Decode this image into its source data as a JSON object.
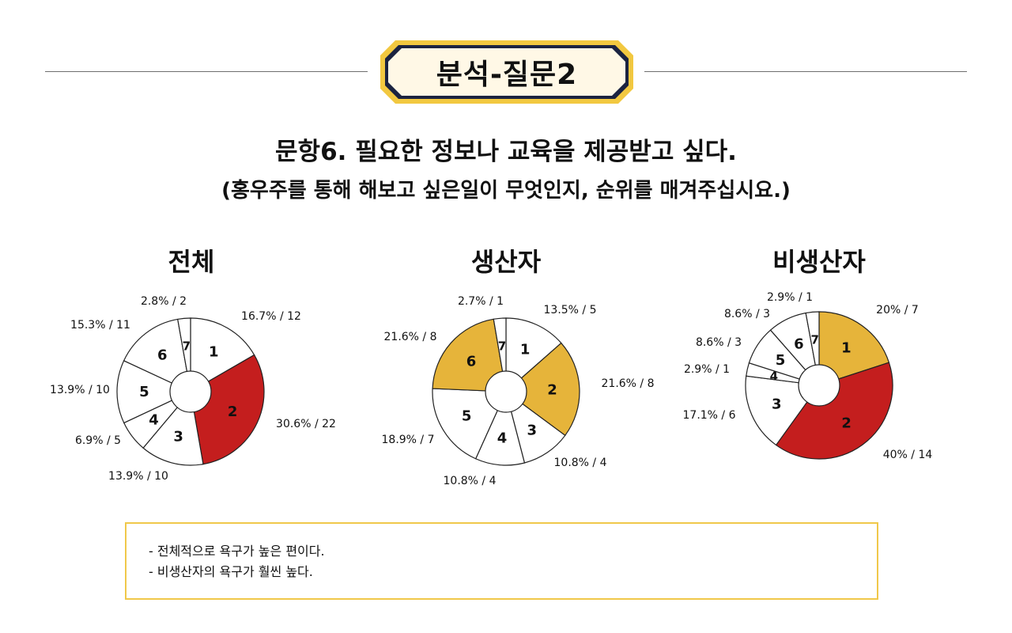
{
  "header": {
    "badge_label": "분석-질문2"
  },
  "question": {
    "title": "문항6. 필요한 정보나 교육을 제공받고 싶다.",
    "subtitle": "(홍우주를 통해 해보고 싶은일이 무엇인지, 순위를 매겨주십시요.)"
  },
  "colors": {
    "red": "#c41e1e",
    "gold": "#e6b43a",
    "white": "#ffffff",
    "stroke": "#222222",
    "badge_fill": "#fff8e6",
    "badge_border": "#f2c840",
    "badge_inner": "#1b2340"
  },
  "chart_data": [
    {
      "type": "pie",
      "title": "전체",
      "categories": [
        "1",
        "2",
        "3",
        "4",
        "5",
        "6",
        "7"
      ],
      "values": [
        16.7,
        30.6,
        13.9,
        6.9,
        13.9,
        15.3,
        2.8
      ],
      "counts": [
        12,
        22,
        10,
        5,
        10,
        11,
        2
      ],
      "labels": [
        "16.7% / 12",
        "30.6% / 22",
        "13.9% / 10",
        "6.9% / 5",
        "13.9% / 10",
        "15.3% / 11",
        "2.8% / 2"
      ],
      "slice_colors": [
        "#ffffff",
        "#c41e1e",
        "#ffffff",
        "#ffffff",
        "#ffffff",
        "#ffffff",
        "#ffffff"
      ]
    },
    {
      "type": "pie",
      "title": "생산자",
      "categories": [
        "1",
        "2",
        "3",
        "4",
        "5",
        "6",
        "7"
      ],
      "values": [
        13.5,
        21.6,
        10.8,
        10.8,
        18.9,
        21.6,
        2.7
      ],
      "counts": [
        5,
        8,
        4,
        4,
        7,
        8,
        1
      ],
      "labels": [
        "13.5% / 5",
        "21.6% / 8",
        "10.8% / 4",
        "10.8% / 4",
        "18.9% / 7",
        "21.6% / 8",
        "2.7% / 1"
      ],
      "slice_colors": [
        "#ffffff",
        "#e6b43a",
        "#ffffff",
        "#ffffff",
        "#ffffff",
        "#e6b43a",
        "#ffffff"
      ]
    },
    {
      "type": "pie",
      "title": "비생산자",
      "categories": [
        "1",
        "2",
        "3",
        "4",
        "5",
        "6",
        "7"
      ],
      "values": [
        20,
        40,
        17.1,
        2.9,
        8.6,
        8.6,
        2.9
      ],
      "counts": [
        7,
        14,
        6,
        1,
        3,
        3,
        1
      ],
      "labels": [
        "20% / 7",
        "40% / 14",
        "17.1% / 6",
        "2.9% / 1",
        "8.6% / 3",
        "8.6% / 3",
        "2.9% / 1"
      ],
      "slice_colors": [
        "#e6b43a",
        "#c41e1e",
        "#ffffff",
        "#ffffff",
        "#ffffff",
        "#ffffff",
        "#ffffff"
      ]
    }
  ],
  "summary": {
    "notes": [
      "- 전체적으로 욕구가 높은 편이다.",
      "- 비생산자의 욕구가 훨씬 높다."
    ]
  }
}
